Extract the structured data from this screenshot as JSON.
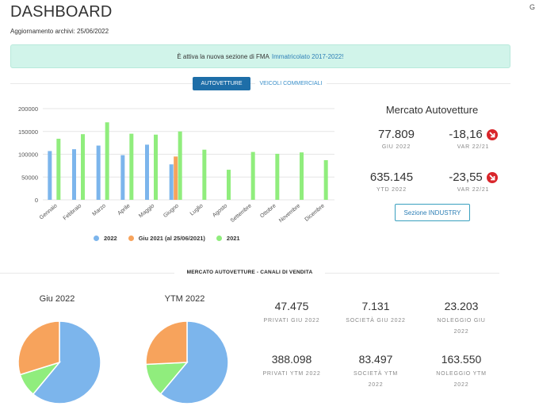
{
  "header": {
    "title": "DASHBOARD",
    "updated": "Aggiornamento archivi: 25/06/2022",
    "corner_label": "G"
  },
  "alert": {
    "text": "È attiva la nuova sezione di FMA",
    "link": "Immatricolato 2017-2022!"
  },
  "tabs": [
    {
      "label": "AUTOVETTURE",
      "active": true
    },
    {
      "label": "VEICOLI COMMERCIALI",
      "active": false
    }
  ],
  "chart_data": {
    "type": "bar",
    "categories": [
      "Gennaio",
      "Febbraio",
      "Marzo",
      "Aprile",
      "Maggio",
      "Giugno",
      "Luglio",
      "Agosto",
      "Settembre",
      "Ottobre",
      "Novembre",
      "Dicembre"
    ],
    "y_ticks": [
      "0",
      "50000",
      "100000",
      "150000",
      "200000"
    ],
    "ylim": [
      0,
      200000
    ],
    "series": [
      {
        "name": "2022",
        "color": "#7cb5ec",
        "values": [
          107000,
          111000,
          119000,
          98000,
          121000,
          77809,
          null,
          null,
          null,
          null,
          null,
          null
        ]
      },
      {
        "name": "Giu 2021 (al 25/06/2021)",
        "color": "#f7a35c",
        "values": [
          null,
          null,
          null,
          null,
          null,
          95000,
          null,
          null,
          null,
          null,
          null,
          null
        ]
      },
      {
        "name": "2021",
        "color": "#90ed7d",
        "values": [
          134000,
          144000,
          170000,
          145000,
          143000,
          150000,
          110000,
          66000,
          105000,
          101000,
          104000,
          87000
        ]
      }
    ],
    "grid": true,
    "legend_position": "bottom"
  },
  "market": {
    "title": "Mercato Autovetture",
    "month_value": "77.809",
    "month_label": "GIU 2022",
    "month_var": "-18,16",
    "month_var_label": "VAR 22/21",
    "ytd_value": "635.145",
    "ytd_label": "YTD 2022",
    "ytd_var": "-23,55",
    "ytd_var_label": "VAR 22/21",
    "down_color": "#d9262b",
    "button": "Sezione INDUSTRY"
  },
  "channels": {
    "section_title": "MERCATO AUTOVETTURE - CANALI DI VENDITA",
    "pies": [
      {
        "title": "Giu 2022",
        "slices": [
          {
            "name": "Privati",
            "value": 47475,
            "color": "#7cb5ec"
          },
          {
            "name": "Società",
            "value": 7131,
            "color": "#90ed7d"
          },
          {
            "name": "Noleggio",
            "value": 23203,
            "color": "#f7a35c"
          }
        ]
      },
      {
        "title": "YTM 2022",
        "slices": [
          {
            "name": "Privati",
            "value": 388098,
            "color": "#7cb5ec"
          },
          {
            "name": "Società",
            "value": 83497,
            "color": "#90ed7d"
          },
          {
            "name": "Noleggio",
            "value": 163550,
            "color": "#f7a35c"
          }
        ]
      }
    ],
    "kpis": [
      {
        "value": "47.475",
        "label": "PRIVATI GIU 2022"
      },
      {
        "value": "7.131",
        "label": "SOCIETÀ GIU 2022"
      },
      {
        "value": "23.203",
        "label": "NOLEGGIO GIU 2022"
      },
      {
        "value": "388.098",
        "label": "PRIVATI YTM 2022"
      },
      {
        "value": "83.497",
        "label": "SOCIETÀ YTM 2022"
      },
      {
        "value": "163.550",
        "label": "NOLEGGIO YTM 2022"
      }
    ]
  }
}
